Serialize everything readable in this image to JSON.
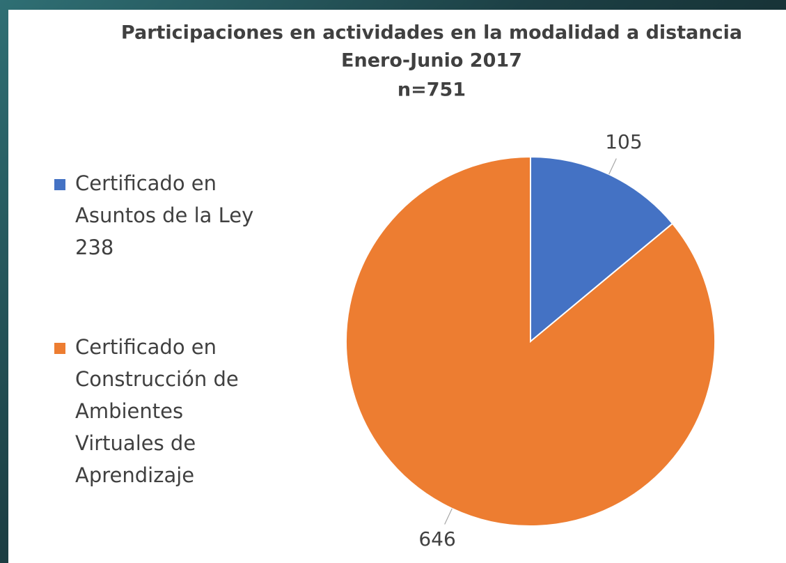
{
  "chart_data": {
    "type": "pie",
    "title": "Participaciones en actividades en la modalidad a distancia",
    "subtitle": "Enero-Junio 2017",
    "annotation": "n=751",
    "categories": [
      "Certificado en Asuntos de la Ley 238",
      "Certificado en Construcción de Ambientes Virtuales de Aprendizaje"
    ],
    "values": [
      105,
      646
    ],
    "colors": [
      "#4472c4",
      "#ed7d31"
    ],
    "legend": "left"
  }
}
